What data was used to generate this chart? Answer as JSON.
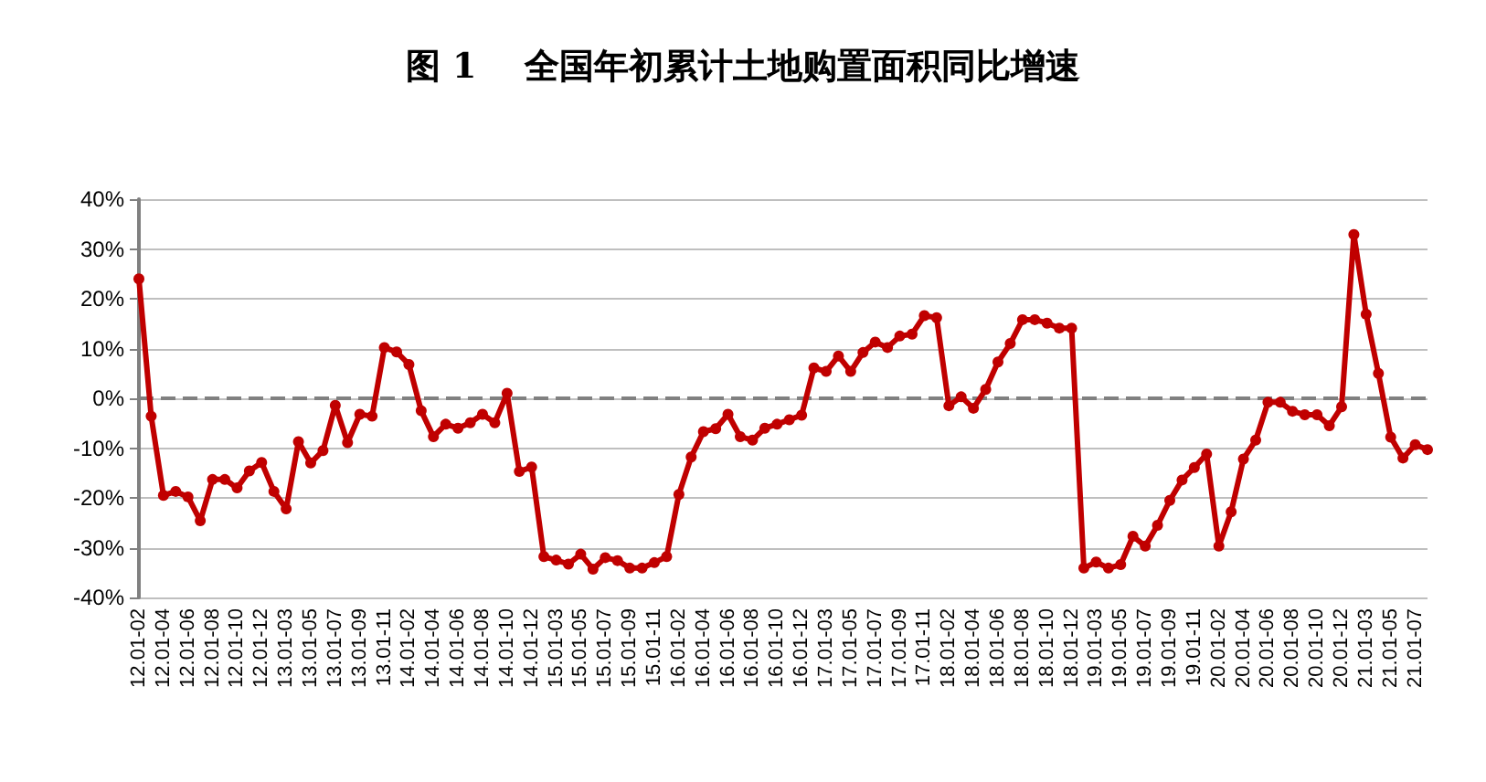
{
  "chart_data": {
    "type": "line",
    "title": "图 1    全国年初累计土地购置面积同比增速",
    "categories": [
      "12.01-02",
      null,
      "12.01-04",
      null,
      "12.01-06",
      null,
      "12.01-08",
      null,
      "12.01-10",
      null,
      "12.01-12",
      null,
      "13.01-03",
      null,
      "13.01-05",
      null,
      "13.01-07",
      null,
      "13.01-09",
      null,
      "13.01-11",
      null,
      "14.01-02",
      null,
      "14.01-04",
      null,
      "14.01-06",
      null,
      "14.01-08",
      null,
      "14.01-10",
      null,
      "14.01-12",
      null,
      "15.01-03",
      null,
      "15.01-05",
      null,
      "15.01-07",
      null,
      "15.01-09",
      null,
      "15.01-11",
      null,
      "16.01-02",
      null,
      "16.01-04",
      null,
      "16.01-06",
      null,
      "16.01-08",
      null,
      "16.01-10",
      null,
      "16.01-12",
      null,
      "17.01-03",
      null,
      "17.01-05",
      null,
      "17.01-07",
      null,
      "17.01-09",
      null,
      "17.01-11",
      null,
      "18.01-02",
      null,
      "18.01-04",
      null,
      "18.01-06",
      null,
      "18.01-08",
      null,
      "18.01-10",
      null,
      "18.01-12",
      null,
      "19.01-03",
      null,
      "19.01-05",
      null,
      "19.01-07",
      null,
      "19.01-09",
      null,
      "19.01-11",
      null,
      "20.01-02",
      null,
      "20.01-04",
      null,
      "20.01-06",
      null,
      "20.01-08",
      null,
      "20.01-10",
      null,
      "20.01-12",
      null,
      "21.01-03",
      null,
      "21.01-05",
      null,
      "21.01-07",
      null
    ],
    "series": [
      {
        "color": "#c00000",
        "values": [
          24.0,
          -3.6,
          -19.5,
          -18.7,
          -19.8,
          -24.6,
          -16.3,
          -16.3,
          -18.0,
          -14.6,
          -12.9,
          -18.7,
          -22.2,
          -8.7,
          -13.0,
          -10.5,
          -1.4,
          -8.9,
          -3.2,
          -3.6,
          10.2,
          9.3,
          6.8,
          -2.5,
          -7.7,
          -5.2,
          -6.0,
          -4.9,
          -3.2,
          -4.9,
          1.0,
          -14.7,
          -13.8,
          -31.8,
          -32.5,
          -33.3,
          -31.3,
          -34.3,
          -32.0,
          -32.6,
          -34.1,
          -34.1,
          -33.0,
          -31.8,
          -19.3,
          -11.8,
          -6.7,
          -6.1,
          -3.2,
          -7.7,
          -8.4,
          -6.0,
          -5.2,
          -4.3,
          -3.4,
          6.1,
          5.4,
          8.5,
          5.4,
          9.2,
          11.3,
          10.2,
          12.5,
          12.9,
          16.6,
          16.2,
          -1.5,
          0.3,
          -2.0,
          1.8,
          7.3,
          11.0,
          15.8,
          15.8,
          15.1,
          14.1,
          14.1,
          -34.1,
          -32.9,
          -34.1,
          -33.4,
          -27.7,
          -29.7,
          -25.5,
          -20.5,
          -16.4,
          -13.9,
          -11.2,
          -29.7,
          -22.8,
          -12.2,
          -8.4,
          -0.8,
          -0.8,
          -2.6,
          -3.3,
          -3.3,
          -5.5,
          -1.7,
          32.9,
          16.9,
          5.0,
          -7.8,
          -12.0,
          -9.3,
          -10.3
        ]
      }
    ],
    "ylim": [
      -40,
      40
    ],
    "yticks": [
      {
        "value": -40,
        "label": "-40%"
      },
      {
        "value": -30,
        "label": "-30%"
      },
      {
        "value": -20,
        "label": "-20%"
      },
      {
        "value": -10,
        "label": "-10%"
      },
      {
        "value": 0,
        "label": "0%"
      },
      {
        "value": 10,
        "label": "10%"
      },
      {
        "value": 20,
        "label": "20%"
      },
      {
        "value": 30,
        "label": "30%"
      },
      {
        "value": 40,
        "label": "40%"
      }
    ],
    "ref_lines": [
      {
        "axis": "y",
        "value": 0,
        "color": "#808080",
        "line_style": "dashed"
      }
    ],
    "grid": "y",
    "marker": "circle",
    "line_style": "solid"
  }
}
